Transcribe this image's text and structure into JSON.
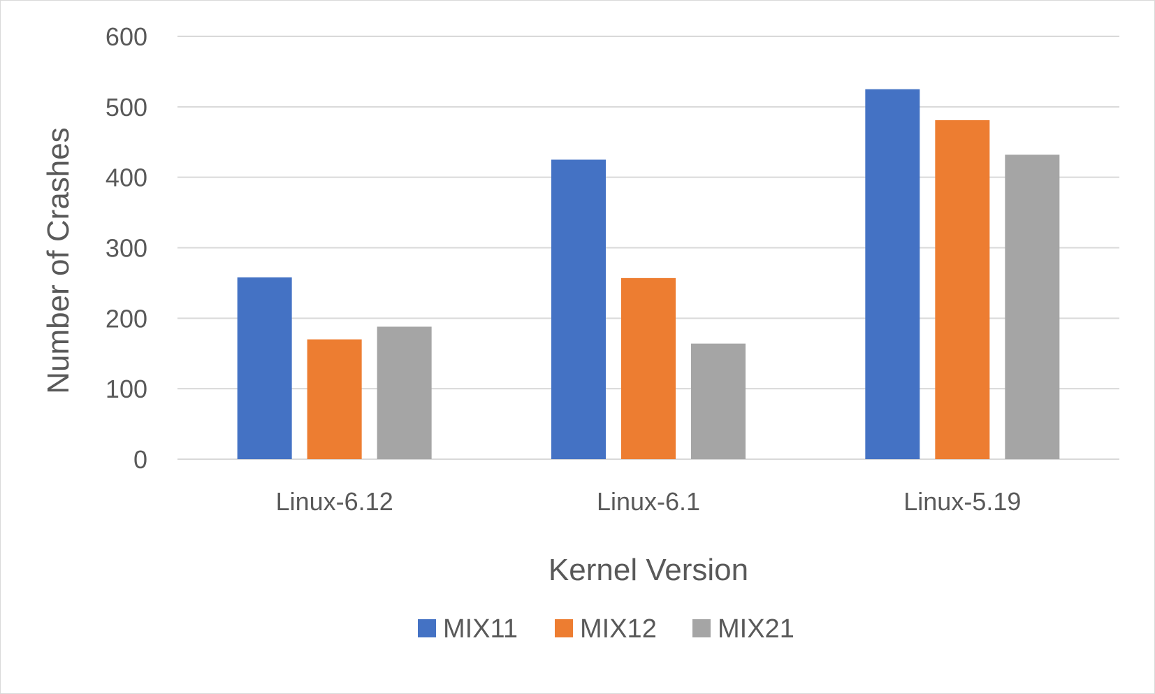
{
  "chart_data": {
    "type": "bar",
    "categories": [
      "Linux-6.12",
      "Linux-6.1",
      "Linux-5.19"
    ],
    "series": [
      {
        "name": "MIX11",
        "color": "#4472c4",
        "values": [
          258,
          425,
          525
        ]
      },
      {
        "name": "MIX12",
        "color": "#ed7d31",
        "values": [
          170,
          257,
          481
        ]
      },
      {
        "name": "MIX21",
        "color": "#a5a5a5",
        "values": [
          188,
          164,
          432
        ]
      }
    ],
    "xlabel": "Kernel Version",
    "ylabel": "Number of Crashes",
    "ylim": [
      0,
      600
    ],
    "yticks": [
      0,
      100,
      200,
      300,
      400,
      500,
      600
    ],
    "grid": true,
    "legend_position": "bottom"
  }
}
